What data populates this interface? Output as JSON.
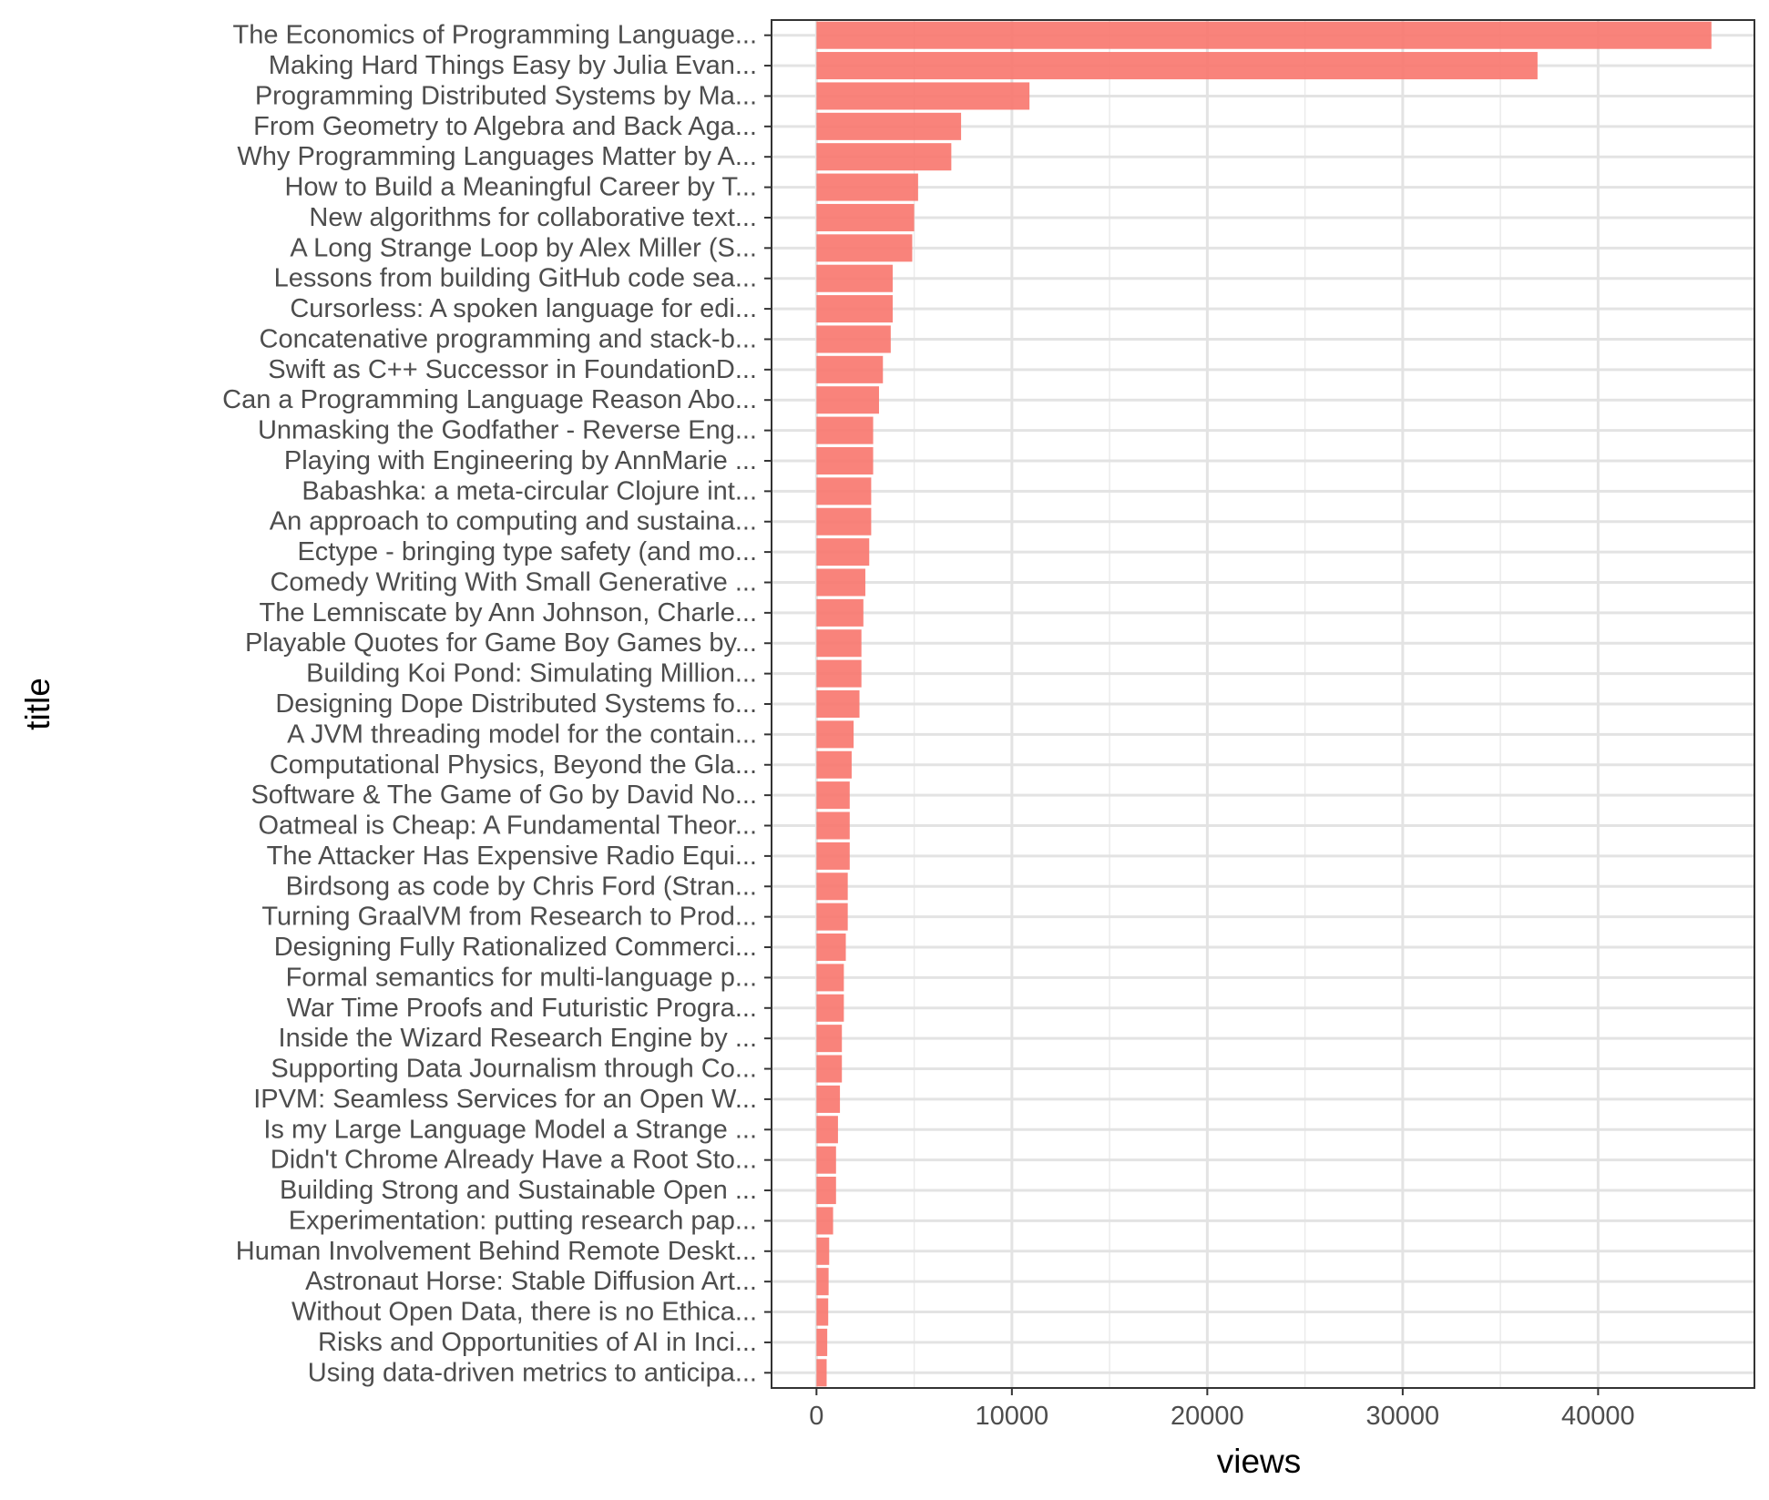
{
  "chart_data": {
    "type": "bar",
    "orientation": "horizontal",
    "xlabel": "views",
    "ylabel": "title",
    "xlim": [
      -2300,
      48000
    ],
    "x_ticks": [
      0,
      10000,
      20000,
      30000,
      40000
    ],
    "grid": true,
    "bar_color": "#f8766d",
    "categories": [
      "The Economics of Programming Language...",
      "Making Hard Things Easy by Julia Evan...",
      "Programming Distributed Systems by Ma...",
      "From Geometry to Algebra and Back Aga...",
      "Why Programming Languages Matter by A...",
      "How to Build a Meaningful Career by T...",
      "New algorithms for collaborative text...",
      "A Long Strange Loop by Alex Miller (S...",
      "Lessons from building GitHub code sea...",
      "Cursorless: A spoken language for edi...",
      "Concatenative programming and stack-b...",
      "Swift as C++ Successor in FoundationD...",
      "Can a Programming Language Reason Abo...",
      "Unmasking the Godfather - Reverse Eng...",
      "Playing with Engineering by AnnMarie ...",
      "Babashka: a meta-circular Clojure int...",
      "An approach to computing and sustaina...",
      "Ectype - bringing type safety (and mo...",
      "Comedy Writing With Small Generative ...",
      "The Lemniscate by Ann Johnson, Charle...",
      "Playable Quotes for Game Boy Games by...",
      "Building Koi Pond: Simulating Million...",
      "Designing Dope Distributed Systems fo...",
      "A JVM threading model for the contain...",
      "Computational Physics, Beyond the Gla...",
      "Software & The Game of Go by David No...",
      "Oatmeal is Cheap: A Fundamental Theor...",
      "The Attacker Has Expensive Radio Equi...",
      "Birdsong as code by Chris Ford (Stran...",
      "Turning GraalVM from Research to Prod...",
      "Designing Fully Rationalized Commerci...",
      "Formal semantics for multi-language p...",
      "War Time Proofs and Futuristic Progra...",
      "Inside the Wizard Research Engine by ...",
      "Supporting Data Journalism through Co...",
      "IPVM: Seamless Services for an Open W...",
      "Is my Large Language Model a Strange ...",
      "Didn't Chrome Already Have a Root Sto...",
      "Building Strong and Sustainable Open ...",
      "Experimentation: putting research pap...",
      "Human Involvement Behind Remote Deskt...",
      "Astronaut Horse: Stable Diffusion Art...",
      "Without Open Data, there is no Ethica...",
      "Risks and Opportunities of AI in Inci...",
      "Using data-driven metrics to anticipa..."
    ],
    "values": [
      45800,
      36900,
      10900,
      7400,
      6900,
      5200,
      5000,
      4900,
      3900,
      3900,
      3800,
      3400,
      3200,
      2900,
      2900,
      2800,
      2800,
      2700,
      2500,
      2400,
      2300,
      2300,
      2200,
      1900,
      1800,
      1700,
      1700,
      1700,
      1600,
      1600,
      1500,
      1400,
      1400,
      1300,
      1300,
      1200,
      1100,
      1000,
      1000,
      850,
      650,
      620,
      600,
      550,
      520
    ]
  }
}
